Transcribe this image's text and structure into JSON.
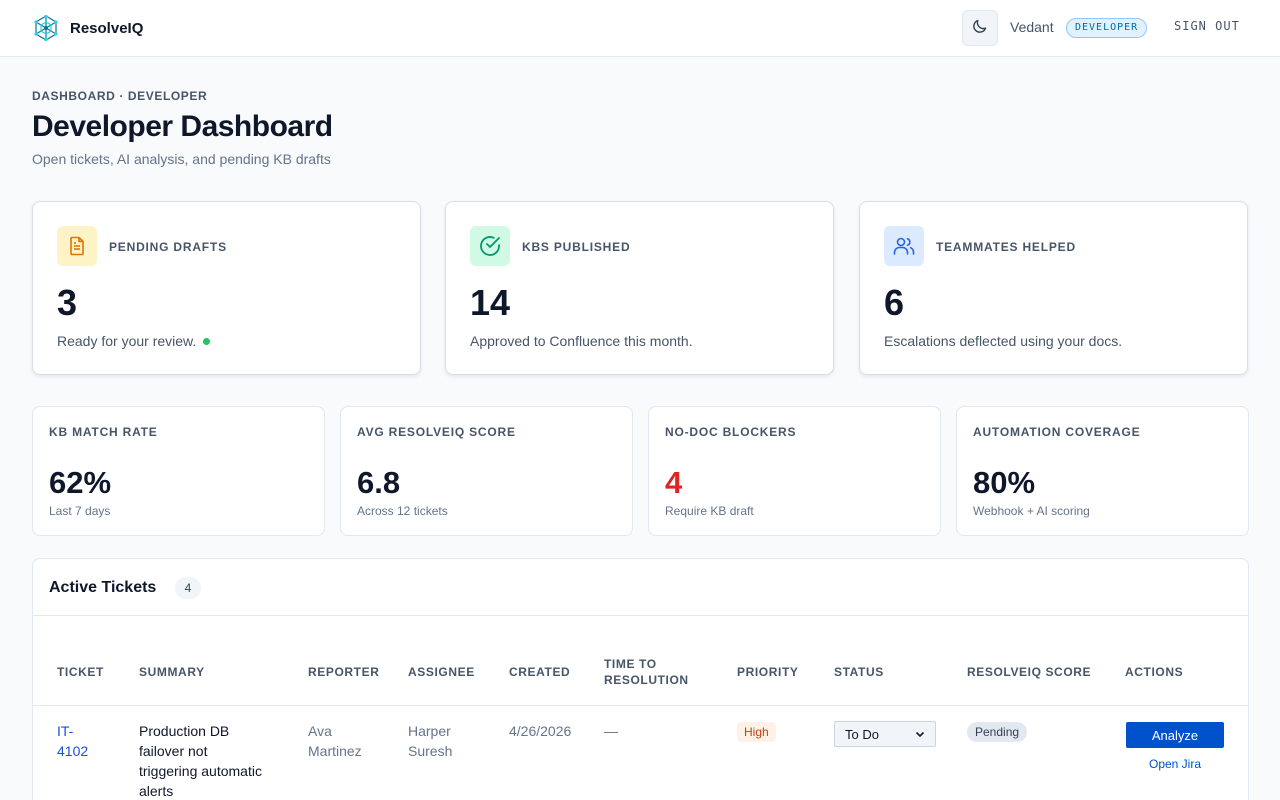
{
  "header": {
    "app_name": "ResolveIQ",
    "user_name": "Vedant",
    "role": "DEVELOPER",
    "sign_out": "SIGN OUT",
    "logo_icon": "network-logo-icon",
    "theme_icon": "moon-icon"
  },
  "page": {
    "breadcrumb": "DASHBOARD · DEVELOPER",
    "title": "Developer Dashboard",
    "subtitle": "Open tickets, AI analysis, and pending KB drafts"
  },
  "stats": [
    {
      "label": "PENDING DRAFTS",
      "value": "3",
      "desc": "Ready for your review.",
      "icon": "document-icon",
      "color": "#d97706",
      "bg": "#fef3c7"
    },
    {
      "label": "KBS PUBLISHED",
      "value": "14",
      "desc": "Approved to Confluence this month.",
      "icon": "check-circle-icon",
      "color": "#059669",
      "bg": "#d1fae5"
    },
    {
      "label": "TEAMMATES HELPED",
      "value": "6",
      "desc": "Escalations deflected using your docs.",
      "icon": "users-icon",
      "color": "#2563eb",
      "bg": "#dbeafe"
    }
  ],
  "metrics": [
    {
      "label": "KB MATCH RATE",
      "value": "62%",
      "desc": "Last 7 days"
    },
    {
      "label": "AVG RESOLVEIQ SCORE",
      "value": "6.8",
      "desc": "Across 12 tickets"
    },
    {
      "label": "NO-DOC BLOCKERS",
      "value": "4",
      "desc": "Require KB draft",
      "value_color": "#dc2626"
    },
    {
      "label": "AUTOMATION COVERAGE",
      "value": "80%",
      "desc": "Webhook + AI scoring"
    }
  ],
  "tickets": {
    "title": "Active Tickets",
    "count": "4",
    "columns": [
      "TICKET",
      "SUMMARY",
      "REPORTER",
      "ASSIGNEE",
      "CREATED",
      "TIME TO",
      "RESOLUTION",
      "PRIORITY",
      "STATUS",
      "RESOLVEIQ SCORE",
      "ACTIONS"
    ],
    "rows": [
      {
        "id_line1": "IT-",
        "id_line2": "4102",
        "summary_lines": [
          "Production DB",
          "failover not",
          "triggering automatic",
          "alerts"
        ],
        "reporter_lines": [
          "Ava",
          "Martinez"
        ],
        "assignee_lines": [
          "Harper",
          "Suresh"
        ],
        "created": "4/26/2026",
        "ttr": "—",
        "priority": "High",
        "status": "To Do",
        "score": "Pending",
        "analyze": "Analyze",
        "open_jira": "Open Jira"
      }
    ]
  }
}
